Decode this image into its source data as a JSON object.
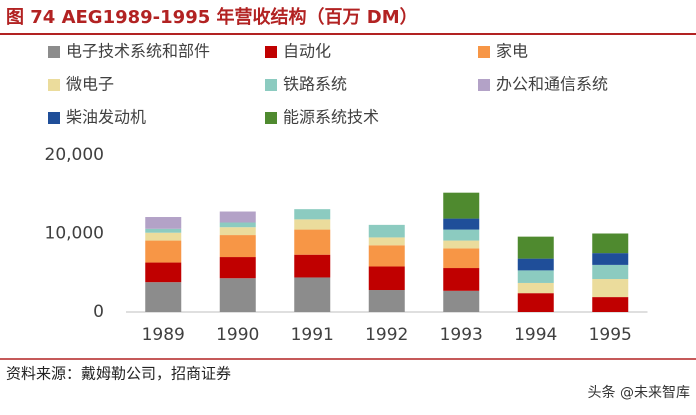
{
  "chart_data": {
    "type": "stacked-bar",
    "title": "图 74 AEG1989-1995 年营收结构（百万 DM）",
    "source": "资料来源：戴姆勒公司，招商证券",
    "watermark": "头条 @未来智库",
    "categories": [
      "1989",
      "1990",
      "1991",
      "1992",
      "1993",
      "1994",
      "1995"
    ],
    "series": [
      {
        "name": "电子技术系统和部件",
        "color": "#8c8c8c",
        "values": [
          3800,
          4300,
          4400,
          2800,
          2700,
          0,
          0
        ]
      },
      {
        "name": "自动化",
        "color": "#c00000",
        "values": [
          2500,
          2700,
          2900,
          3000,
          2900,
          2400,
          1900
        ]
      },
      {
        "name": "家电",
        "color": "#f79646",
        "values": [
          2800,
          2800,
          3200,
          2700,
          2500,
          0,
          0
        ]
      },
      {
        "name": "微电子",
        "color": "#ebdc9c",
        "values": [
          1000,
          1000,
          1300,
          1000,
          1000,
          1300,
          2300
        ]
      },
      {
        "name": "铁路系统",
        "color": "#8ccbc0",
        "values": [
          500,
          600,
          1300,
          1600,
          1400,
          1600,
          1800
        ]
      },
      {
        "name": "办公和通信系统",
        "color": "#b3a2c7",
        "values": [
          1500,
          1400,
          0,
          0,
          0,
          0,
          0
        ]
      },
      {
        "name": "柴油发动机",
        "color": "#1f4e99",
        "values": [
          0,
          0,
          0,
          0,
          1400,
          1500,
          1500
        ]
      },
      {
        "name": "能源系统技术",
        "color": "#4f8a2f",
        "values": [
          0,
          0,
          0,
          0,
          3300,
          2800,
          2500
        ]
      }
    ],
    "ylim": [
      0,
      20000
    ],
    "yticks": [
      {
        "value": 0,
        "label": "0"
      },
      {
        "value": 10000,
        "label": "10,000"
      },
      {
        "value": 20000,
        "label": "20,000"
      }
    ],
    "grid": false
  }
}
